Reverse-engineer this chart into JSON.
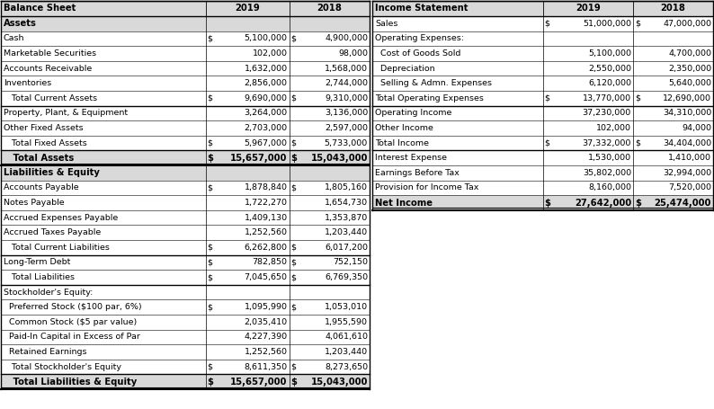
{
  "bg_color": "#FFFFFF",
  "header_bg": "#D9D9D9",
  "border_color": "#000000",
  "text_color": "#000000",
  "font_size": 6.8,
  "bold_font_size": 7.2,
  "bs_title": "Balance Sheet",
  "is_title": "Income Statement",
  "bs_rows": [
    {
      "label": "Assets",
      "v2019": "",
      "v2018": "",
      "style": "section_header",
      "d19": false,
      "d18": false
    },
    {
      "label": "Cash",
      "v2019": "5,100,000",
      "v2018": "4,900,000",
      "style": "normal",
      "d19": true,
      "d18": true
    },
    {
      "label": "Marketable Securities",
      "v2019": "102,000",
      "v2018": "98,000",
      "style": "normal",
      "d19": false,
      "d18": false
    },
    {
      "label": "Accounts Receivable",
      "v2019": "1,632,000",
      "v2018": "1,568,000",
      "style": "normal",
      "d19": false,
      "d18": false
    },
    {
      "label": "Inventories",
      "v2019": "2,856,000",
      "v2018": "2,744,000",
      "style": "normal",
      "d19": false,
      "d18": false
    },
    {
      "label": "   Total Current Assets",
      "v2019": "9,690,000",
      "v2018": "9,310,000",
      "style": "subtotal",
      "d19": true,
      "d18": true
    },
    {
      "label": "Property, Plant, & Equipment",
      "v2019": "3,264,000",
      "v2018": "3,136,000",
      "style": "normal",
      "d19": false,
      "d18": false
    },
    {
      "label": "Other Fixed Assets",
      "v2019": "2,703,000",
      "v2018": "2,597,000",
      "style": "normal",
      "d19": false,
      "d18": false
    },
    {
      "label": "   Total Fixed Assets",
      "v2019": "5,967,000",
      "v2018": "5,733,000",
      "style": "subtotal",
      "d19": true,
      "d18": true
    },
    {
      "label": "   Total Assets",
      "v2019": "15,657,000",
      "v2018": "15,043,000",
      "style": "total",
      "d19": true,
      "d18": true
    },
    {
      "label": "Liabilities & Equity",
      "v2019": "",
      "v2018": "",
      "style": "section_header",
      "d19": false,
      "d18": false
    },
    {
      "label": "Accounts Payable",
      "v2019": "1,878,840",
      "v2018": "1,805,160",
      "style": "normal",
      "d19": true,
      "d18": true
    },
    {
      "label": "Notes Payable",
      "v2019": "1,722,270",
      "v2018": "1,654,730",
      "style": "normal",
      "d19": false,
      "d18": false
    },
    {
      "label": "Accrued Expenses Payable",
      "v2019": "1,409,130",
      "v2018": "1,353,870",
      "style": "normal",
      "d19": false,
      "d18": false
    },
    {
      "label": "Accrued Taxes Payable",
      "v2019": "1,252,560",
      "v2018": "1,203,440",
      "style": "normal",
      "d19": false,
      "d18": false
    },
    {
      "label": "   Total Current Liabilities",
      "v2019": "6,262,800",
      "v2018": "6,017,200",
      "style": "subtotal",
      "d19": true,
      "d18": true
    },
    {
      "label": "Long-Term Debt",
      "v2019": "782,850",
      "v2018": "752,150",
      "style": "normal",
      "d19": true,
      "d18": true
    },
    {
      "label": "   Total Liabilities",
      "v2019": "7,045,650",
      "v2018": "6,769,350",
      "style": "subtotal",
      "d19": true,
      "d18": true
    },
    {
      "label": "Stockholder's Equity:",
      "v2019": "",
      "v2018": "",
      "style": "normal",
      "d19": false,
      "d18": false
    },
    {
      "label": "  Preferred Stock ($100 par, 6%)",
      "v2019": "1,095,990",
      "v2018": "1,053,010",
      "style": "normal",
      "d19": true,
      "d18": true
    },
    {
      "label": "  Common Stock ($5 par value)",
      "v2019": "2,035,410",
      "v2018": "1,955,590",
      "style": "normal",
      "d19": false,
      "d18": false
    },
    {
      "label": "  Paid-In Capital in Excess of Par",
      "v2019": "4,227,390",
      "v2018": "4,061,610",
      "style": "normal",
      "d19": false,
      "d18": false
    },
    {
      "label": "  Retained Earnings",
      "v2019": "1,252,560",
      "v2018": "1,203,440",
      "style": "normal",
      "d19": false,
      "d18": false
    },
    {
      "label": "   Total Stockholder's Equity",
      "v2019": "8,611,350",
      "v2018": "8,273,650",
      "style": "subtotal",
      "d19": true,
      "d18": true
    },
    {
      "label": "   Total Liabilities & Equity",
      "v2019": "15,657,000",
      "v2018": "15,043,000",
      "style": "total",
      "d19": true,
      "d18": true
    }
  ],
  "is_rows": [
    {
      "label": "Sales",
      "v2019": "51,000,000",
      "v2018": "47,000,000",
      "style": "normal",
      "d19": true,
      "d18": true
    },
    {
      "label": "Operating Expenses:",
      "v2019": "",
      "v2018": "",
      "style": "normal",
      "d19": false,
      "d18": false
    },
    {
      "label": "  Cost of Goods Sold",
      "v2019": "5,100,000",
      "v2018": "4,700,000",
      "style": "normal",
      "d19": false,
      "d18": false
    },
    {
      "label": "  Depreciation",
      "v2019": "2,550,000",
      "v2018": "2,350,000",
      "style": "normal",
      "d19": false,
      "d18": false
    },
    {
      "label": "  Selling & Admn. Expenses",
      "v2019": "6,120,000",
      "v2018": "5,640,000",
      "style": "normal",
      "d19": false,
      "d18": false
    },
    {
      "label": "Total Operating Expenses",
      "v2019": "13,770,000",
      "v2018": "12,690,000",
      "style": "subtotal",
      "d19": true,
      "d18": true
    },
    {
      "label": "Operating Income",
      "v2019": "37,230,000",
      "v2018": "34,310,000",
      "style": "normal",
      "d19": false,
      "d18": false
    },
    {
      "label": "Other Income",
      "v2019": "102,000",
      "v2018": "94,000",
      "style": "normal",
      "d19": false,
      "d18": false
    },
    {
      "label": "Total Income",
      "v2019": "37,332,000",
      "v2018": "34,404,000",
      "style": "subtotal",
      "d19": true,
      "d18": true
    },
    {
      "label": "Interest Expense",
      "v2019": "1,530,000",
      "v2018": "1,410,000",
      "style": "normal",
      "d19": false,
      "d18": false
    },
    {
      "label": "Earnings Before Tax",
      "v2019": "35,802,000",
      "v2018": "32,994,000",
      "style": "normal",
      "d19": false,
      "d18": false
    },
    {
      "label": "Provision for Income Tax",
      "v2019": "8,160,000",
      "v2018": "7,520,000",
      "style": "normal",
      "d19": false,
      "d18": false
    },
    {
      "label": "Net Income",
      "v2019": "27,642,000",
      "v2018": "25,474,000",
      "style": "total",
      "d19": true,
      "d18": true
    }
  ]
}
